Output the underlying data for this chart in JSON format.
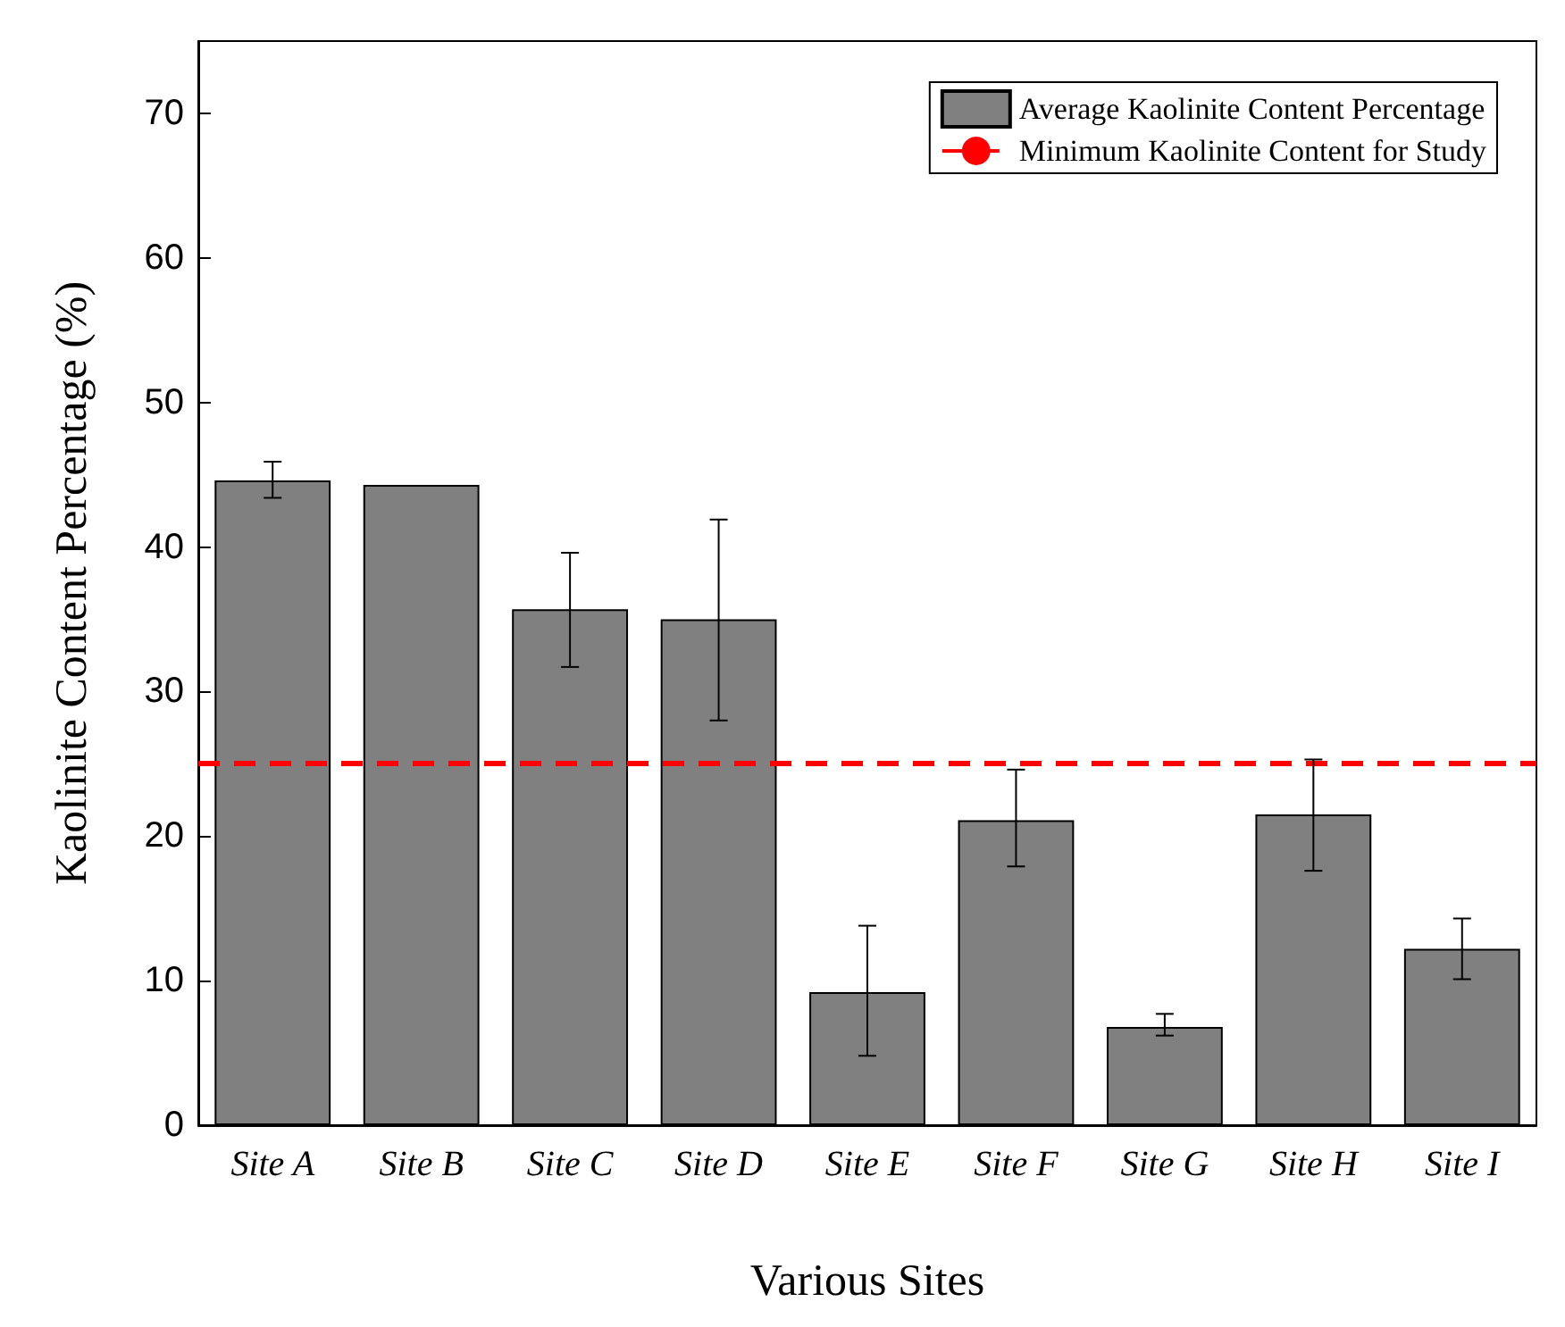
{
  "chart_data": {
    "type": "bar",
    "xlabel": "Various Sites",
    "ylabel": "Kaolinite Content Percentage (%)",
    "categories": [
      "Site A",
      "Site B",
      "Site C",
      "Site D",
      "Site E",
      "Site F",
      "Site G",
      "Site H",
      "Site I"
    ],
    "series": [
      {
        "name": "Average Kaolinite Content Percentage",
        "color": "#808080",
        "values": [
          44.6,
          44.3,
          35.7,
          35.0,
          9.2,
          21.1,
          6.8,
          21.5,
          12.2
        ],
        "errors": [
          [
            43.4,
            45.9
          ],
          null,
          [
            31.7,
            39.6
          ],
          [
            28.0,
            41.9
          ],
          [
            4.8,
            13.8
          ],
          [
            17.9,
            24.6
          ],
          [
            6.2,
            7.7
          ],
          [
            17.6,
            25.3
          ],
          [
            10.1,
            14.3
          ]
        ]
      }
    ],
    "ref_lines": [
      {
        "axis": "y",
        "value": 25,
        "label": "Minimum Kaolinite Content for Study",
        "color": "#ff0000",
        "line_style": "dashed"
      }
    ],
    "ylim": [
      0,
      75
    ],
    "yticks": [
      0,
      10,
      20,
      30,
      40,
      50,
      60,
      70
    ],
    "grid": false,
    "legend": "top right"
  }
}
